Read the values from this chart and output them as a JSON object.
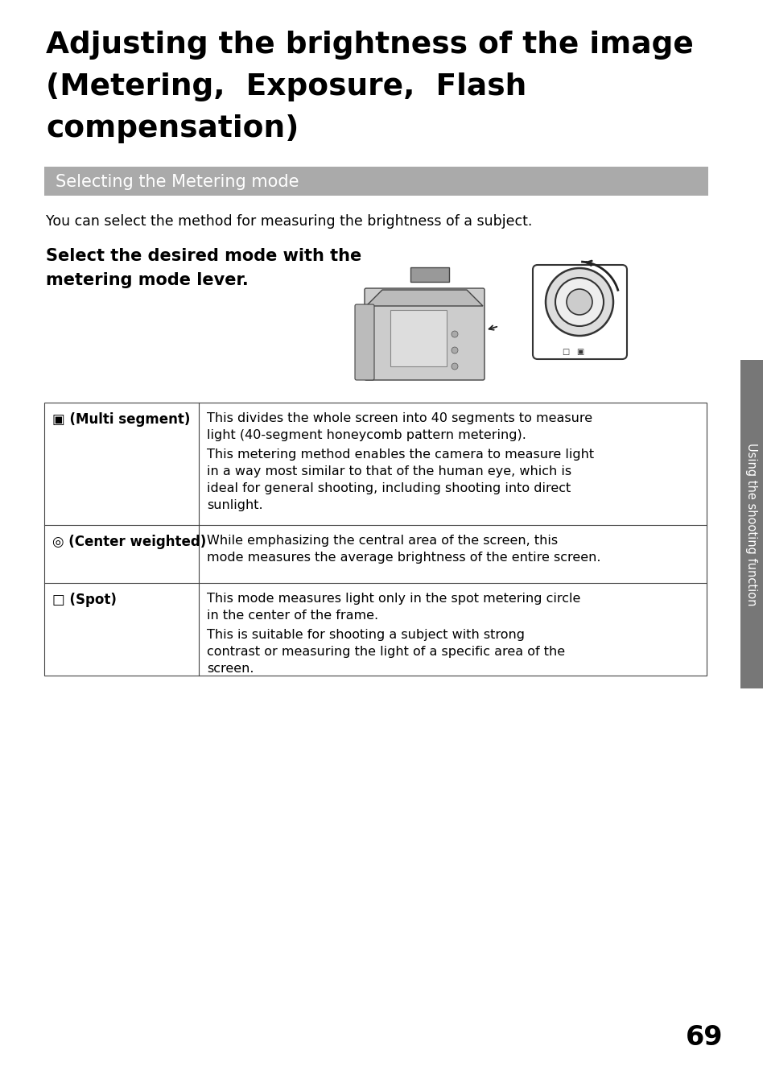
{
  "title_line1": "Adjusting the brightness of the image",
  "title_line2": "(Metering,  Exposure,  Flash",
  "title_line3": "compensation)",
  "section_header": "Selecting the Metering mode",
  "section_header_bg": "#aaaaaa",
  "intro_text": "You can select the method for measuring the brightness of a subject.",
  "bold_instruction_line1": "Select the desired mode with the",
  "bold_instruction_line2": "metering mode lever.",
  "sidebar_text": "Using the shooting function",
  "sidebar_bg": "#777777",
  "page_number": "69",
  "table_rows": [
    {
      "icon_label": "▣ (Multi segment)",
      "description": "This divides the whole screen into 40 segments to measure light (40-segment honeycomb pattern metering).\nThis metering method enables the camera to measure light in a way most similar to that of the human eye, which is ideal for general shooting, including shooting into direct sunlight."
    },
    {
      "icon_label": "◎ (Center weighted)",
      "description": "While emphasizing the central area of the screen, this mode measures the average brightness of the entire screen."
    },
    {
      "icon_label": "□ (Spot)",
      "description": "This mode measures light only in the spot metering circle in the center of the frame.\nThis is suitable for shooting a subject with strong contrast or measuring the light of a specific area of the screen."
    }
  ],
  "bg_color": "#ffffff",
  "text_color": "#000000",
  "table_border_color": "#444444"
}
